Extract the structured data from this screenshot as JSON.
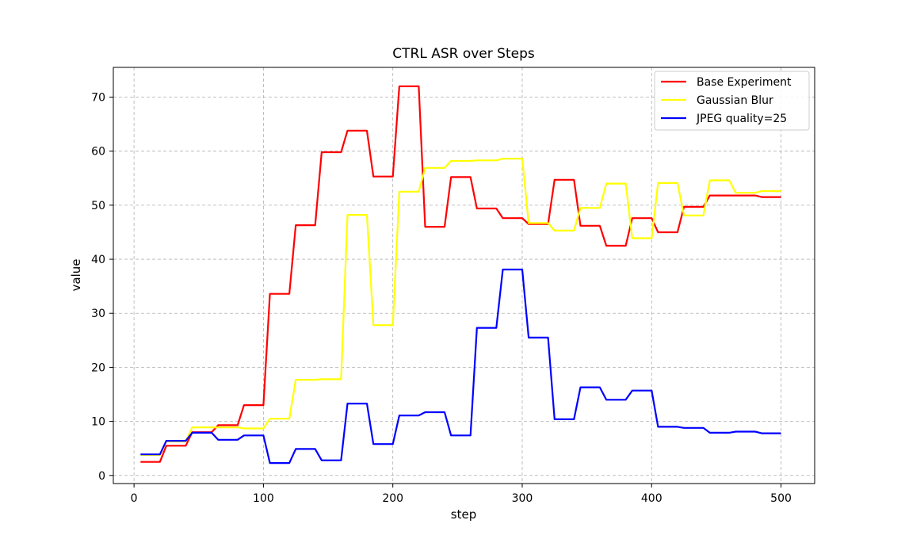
{
  "chart_data": {
    "type": "line",
    "title": "CTRL ASR over Steps",
    "xlabel": "step",
    "ylabel": "value",
    "xlim": [
      -16,
      526
    ],
    "ylim": [
      -1.5,
      75.5
    ],
    "xticks": [
      0,
      100,
      200,
      300,
      400,
      500
    ],
    "yticks": [
      0,
      10,
      20,
      30,
      40,
      50,
      60,
      70
    ],
    "grid": true,
    "legend_position": "top-right",
    "x": [
      5,
      10,
      15,
      20,
      25,
      30,
      35,
      40,
      45,
      50,
      55,
      60,
      65,
      70,
      75,
      80,
      85,
      90,
      95,
      100,
      105,
      110,
      115,
      120,
      125,
      130,
      135,
      140,
      145,
      150,
      155,
      160,
      165,
      170,
      175,
      180,
      185,
      190,
      195,
      200,
      205,
      210,
      215,
      220,
      225,
      230,
      235,
      240,
      245,
      250,
      255,
      260,
      265,
      270,
      275,
      280,
      285,
      290,
      295,
      300,
      305,
      310,
      315,
      320,
      325,
      330,
      335,
      340,
      345,
      350,
      355,
      360,
      365,
      370,
      375,
      380,
      385,
      390,
      395,
      400,
      405,
      410,
      415,
      420,
      425,
      430,
      435,
      440,
      445,
      450,
      455,
      460,
      465,
      470,
      475,
      480,
      485,
      490,
      495,
      500
    ],
    "series": [
      {
        "name": "Base Experiment",
        "color": "#ff0000",
        "values": [
          2.5,
          2.5,
          2.5,
          2.5,
          5.5,
          5.5,
          5.5,
          5.5,
          8.0,
          8.0,
          8.0,
          8.0,
          9.3,
          9.3,
          9.3,
          9.3,
          13.0,
          13.0,
          13.0,
          13.0,
          33.6,
          33.6,
          33.6,
          33.6,
          46.3,
          46.3,
          46.3,
          46.3,
          59.8,
          59.8,
          59.8,
          59.8,
          63.8,
          63.8,
          63.8,
          63.8,
          55.3,
          55.3,
          55.3,
          55.3,
          72.0,
          72.0,
          72.0,
          72.0,
          46.0,
          46.0,
          46.0,
          46.0,
          55.2,
          55.2,
          55.2,
          55.2,
          49.4,
          49.4,
          49.4,
          49.4,
          47.6,
          47.6,
          47.6,
          47.6,
          46.5,
          46.5,
          46.5,
          46.5,
          54.7,
          54.7,
          54.7,
          54.7,
          46.2,
          46.2,
          46.2,
          46.2,
          42.5,
          42.5,
          42.5,
          42.5,
          47.6,
          47.6,
          47.6,
          47.6,
          45.0,
          45.0,
          45.0,
          45.0,
          49.7,
          49.7,
          49.7,
          49.7,
          51.8,
          51.8,
          51.8,
          51.8,
          51.8,
          51.8,
          51.8,
          51.8,
          51.5,
          51.5,
          51.5,
          51.5
        ]
      },
      {
        "name": "Gaussian Blur",
        "color": "#ffff00",
        "values": [
          3.8,
          3.8,
          3.8,
          3.8,
          6.3,
          6.3,
          6.3,
          6.3,
          8.9,
          8.9,
          8.9,
          8.9,
          8.9,
          8.9,
          8.9,
          8.9,
          8.7,
          8.7,
          8.7,
          8.7,
          10.5,
          10.5,
          10.5,
          10.5,
          17.7,
          17.7,
          17.7,
          17.7,
          17.8,
          17.8,
          17.8,
          17.8,
          48.2,
          48.2,
          48.2,
          48.2,
          27.8,
          27.8,
          27.8,
          27.8,
          52.5,
          52.5,
          52.5,
          52.5,
          56.9,
          56.9,
          56.9,
          56.9,
          58.2,
          58.2,
          58.2,
          58.2,
          58.3,
          58.3,
          58.3,
          58.3,
          58.6,
          58.6,
          58.6,
          58.6,
          46.7,
          46.7,
          46.7,
          46.7,
          45.3,
          45.3,
          45.3,
          45.3,
          49.5,
          49.5,
          49.5,
          49.5,
          54.0,
          54.0,
          54.0,
          54.0,
          43.9,
          43.9,
          43.9,
          43.9,
          54.1,
          54.1,
          54.1,
          54.1,
          48.1,
          48.1,
          48.1,
          48.1,
          54.6,
          54.6,
          54.6,
          54.6,
          52.3,
          52.3,
          52.3,
          52.3,
          52.6,
          52.6,
          52.6,
          52.6
        ]
      },
      {
        "name": "JPEG quality=25",
        "color": "#0000ff",
        "values": [
          3.9,
          3.9,
          3.9,
          3.9,
          6.4,
          6.4,
          6.4,
          6.4,
          7.9,
          7.9,
          7.9,
          7.9,
          6.6,
          6.6,
          6.6,
          6.6,
          7.4,
          7.4,
          7.4,
          7.4,
          2.3,
          2.3,
          2.3,
          2.3,
          4.9,
          4.9,
          4.9,
          4.9,
          2.8,
          2.8,
          2.8,
          2.8,
          13.3,
          13.3,
          13.3,
          13.3,
          5.8,
          5.8,
          5.8,
          5.8,
          11.1,
          11.1,
          11.1,
          11.1,
          11.7,
          11.7,
          11.7,
          11.7,
          7.4,
          7.4,
          7.4,
          7.4,
          27.3,
          27.3,
          27.3,
          27.3,
          38.1,
          38.1,
          38.1,
          38.1,
          25.5,
          25.5,
          25.5,
          25.5,
          10.4,
          10.4,
          10.4,
          10.4,
          16.3,
          16.3,
          16.3,
          16.3,
          14.0,
          14.0,
          14.0,
          14.0,
          15.7,
          15.7,
          15.7,
          15.7,
          9.0,
          9.0,
          9.0,
          9.0,
          8.8,
          8.8,
          8.8,
          8.8,
          7.9,
          7.9,
          7.9,
          7.9,
          8.1,
          8.1,
          8.1,
          8.1,
          7.8,
          7.8,
          7.8,
          7.8
        ]
      }
    ]
  }
}
